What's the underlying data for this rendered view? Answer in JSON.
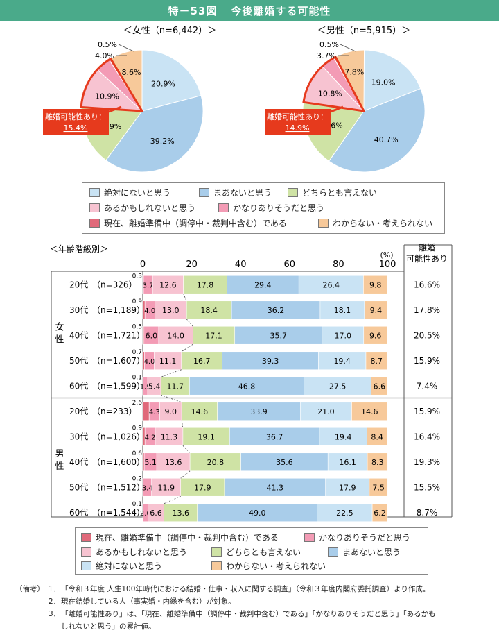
{
  "title": {
    "label": "特－53図",
    "text": "今後離婚する可能性"
  },
  "colors": {
    "current": "#e0697a",
    "fairly": "#f39bb5",
    "maybe": "#f7c3d1",
    "neither": "#cfe3a5",
    "unlikely": "#a9cdea",
    "never": "#c9e3f4",
    "unknown": "#f7c99a",
    "highlight": "#e63a1d"
  },
  "categories_order": [
    "current",
    "fairly",
    "maybe",
    "neither",
    "unlikely",
    "never",
    "unknown"
  ],
  "legend_top": [
    {
      "key": "never",
      "label": "絶対にないと思う"
    },
    {
      "key": "unlikely",
      "label": "まあないと思う"
    },
    {
      "key": "neither",
      "label": "どちらとも言えない"
    },
    {
      "key": "maybe",
      "label": "あるかもしれないと思う"
    },
    {
      "key": "fairly",
      "label": "かなりありそうだと思う"
    },
    {
      "key": "current",
      "label": "現在、離婚準備中（調停中・裁判中含む）である"
    },
    {
      "key": "unknown",
      "label": "わからない・考えられない"
    }
  ],
  "legend_bottom": [
    {
      "key": "current",
      "label": "現在、離婚準備中（調停中・裁判中含む）である"
    },
    {
      "key": "fairly",
      "label": "かなりありそうだと思う"
    },
    {
      "key": "maybe",
      "label": "あるかもしれないと思う"
    },
    {
      "key": "neither",
      "label": "どちらとも言えない"
    },
    {
      "key": "unlikely",
      "label": "まあないと思う"
    },
    {
      "key": "never",
      "label": "絶対にないと思う"
    },
    {
      "key": "unknown",
      "label": "わからない・考えられない"
    }
  ],
  "chart_data": [
    {
      "type": "pie",
      "title": "＜女性（n=6,442）＞",
      "slices": [
        {
          "key": "never",
          "value": 20.9,
          "label": "20.9%"
        },
        {
          "key": "unlikely",
          "value": 39.2,
          "label": "39.2%"
        },
        {
          "key": "neither",
          "value": 15.9,
          "label": "15.9%"
        },
        {
          "key": "maybe",
          "value": 10.9,
          "label": "10.9%"
        },
        {
          "key": "fairly",
          "value": 4.0,
          "label": "4.0%"
        },
        {
          "key": "current",
          "value": 0.5,
          "label": "0.5%"
        },
        {
          "key": "unknown",
          "value": 8.6,
          "label": "8.6%"
        }
      ],
      "callout": {
        "label": "離婚可能性あり：",
        "value": "15.4%"
      }
    },
    {
      "type": "pie",
      "title": "＜男性（n=5,915）＞",
      "slices": [
        {
          "key": "never",
          "value": 19.0,
          "label": "19.0%"
        },
        {
          "key": "unlikely",
          "value": 40.7,
          "label": "40.7%"
        },
        {
          "key": "neither",
          "value": 17.6,
          "label": "17.6%"
        },
        {
          "key": "maybe",
          "value": 10.8,
          "label": "10.8%"
        },
        {
          "key": "fairly",
          "value": 3.7,
          "label": "3.7%"
        },
        {
          "key": "current",
          "value": 0.5,
          "label": "0.5%"
        },
        {
          "key": "unknown",
          "value": 7.8,
          "label": "7.8%"
        }
      ],
      "callout": {
        "label": "離婚可能性あり：",
        "value": "14.9%"
      }
    },
    {
      "type": "bar",
      "orientation": "horizontal-stacked",
      "title": "＜年齢階級別＞",
      "unit": "(%)",
      "xlim": [
        0,
        100
      ],
      "ticks": [
        "0",
        "20",
        "40",
        "60",
        "80",
        "100"
      ],
      "right_header": [
        "離婚",
        "可能性あり"
      ],
      "segments": [
        "current",
        "fairly",
        "maybe",
        "neither",
        "unlikely",
        "never",
        "unknown"
      ],
      "groups": [
        {
          "label": "女性",
          "rows": [
            {
              "age": "20代",
              "n": "（n=326）",
              "values": [
                0.3,
                3.7,
                12.6,
                17.8,
                29.4,
                26.4,
                9.8
              ],
              "labels": [
                "0.3",
                "3.7",
                "12.6",
                "17.8",
                "29.4",
                "26.4",
                "9.8"
              ],
              "total": "16.6%"
            },
            {
              "age": "30代",
              "n": "（n=1,189）",
              "values": [
                0.9,
                4.0,
                13.0,
                18.4,
                36.2,
                18.1,
                9.4
              ],
              "labels": [
                "0.9",
                "4.0",
                "13.0",
                "18.4",
                "36.2",
                "18.1",
                "9.4"
              ],
              "total": "17.8%"
            },
            {
              "age": "40代",
              "n": "（n=1,721）",
              "values": [
                0.5,
                6.0,
                14.0,
                17.1,
                35.7,
                17.0,
                9.6
              ],
              "labels": [
                "0.5",
                "6.0",
                "14.0",
                "17.1",
                "35.7",
                "17.0",
                "9.6"
              ],
              "total": "20.5%"
            },
            {
              "age": "50代",
              "n": "（n=1,607）",
              "values": [
                0.7,
                4.0,
                11.1,
                16.7,
                39.3,
                19.4,
                8.7
              ],
              "labels": [
                "0.7",
                "4.0",
                "11.1",
                "16.7",
                "39.3",
                "19.4",
                "8.7"
              ],
              "total": "15.9%"
            },
            {
              "age": "60代",
              "n": "（n=1,599）",
              "values": [
                0.1,
                1.9,
                5.4,
                11.7,
                46.8,
                27.5,
                6.6
              ],
              "labels": [
                "0.1",
                "1.9",
                "5.4",
                "11.7",
                "46.8",
                "27.5",
                "6.6"
              ],
              "total": "7.4%"
            }
          ]
        },
        {
          "label": "男性",
          "rows": [
            {
              "age": "20代",
              "n": "（n=233）",
              "values": [
                2.6,
                4.3,
                9.0,
                14.6,
                33.9,
                21.0,
                14.6
              ],
              "labels": [
                "2.6",
                "4.3",
                "9.0",
                "14.6",
                "33.9",
                "21.0",
                "14.6"
              ],
              "total": "15.9%"
            },
            {
              "age": "30代",
              "n": "（n=1,026）",
              "values": [
                0.9,
                4.2,
                11.3,
                19.1,
                36.7,
                19.4,
                8.4
              ],
              "labels": [
                "0.9",
                "4.2",
                "11.3",
                "19.1",
                "36.7",
                "19.4",
                "8.4"
              ],
              "total": "16.4%"
            },
            {
              "age": "40代",
              "n": "（n=1,600）",
              "values": [
                0.6,
                5.1,
                13.6,
                20.8,
                35.6,
                16.1,
                8.3
              ],
              "labels": [
                "0.6",
                "5.1",
                "13.6",
                "20.8",
                "35.6",
                "16.1",
                "8.3"
              ],
              "total": "19.3%"
            },
            {
              "age": "50代",
              "n": "（n=1,512）",
              "values": [
                0.2,
                3.4,
                11.9,
                17.9,
                41.3,
                17.9,
                7.5
              ],
              "labels": [
                "0.2",
                "3.4",
                "11.9",
                "17.9",
                "41.3",
                "17.9",
                "7.5"
              ],
              "total": "15.5%"
            },
            {
              "age": "60代",
              "n": "（n=1,544）",
              "values": [
                0.1,
                2.0,
                6.6,
                13.6,
                49.0,
                22.5,
                6.2
              ],
              "labels": [
                "0.1",
                "2.0",
                "6.6",
                "13.6",
                "49.0",
                "22.5",
                "6.2"
              ],
              "total": "8.7%"
            }
          ]
        }
      ]
    }
  ],
  "notes": {
    "heading": "（備考）",
    "items": [
      {
        "num": "1．",
        "text": "「令和３年度 人生100年時代における結婚・仕事・収入に関する調査」（令和３年度内閣府委託調査）より作成。"
      },
      {
        "num": "2．",
        "text": "現在結婚している人（事実婚・内縁を含む）が対象。"
      },
      {
        "num": "3．",
        "text": "「離婚可能性あり」は、「現在、離婚準備中（調停中・裁判中含む）である」「かなりありそうだと思う」「あるかも"
      },
      {
        "num": "",
        "text": "しれないと思う」の累計値。"
      }
    ]
  }
}
